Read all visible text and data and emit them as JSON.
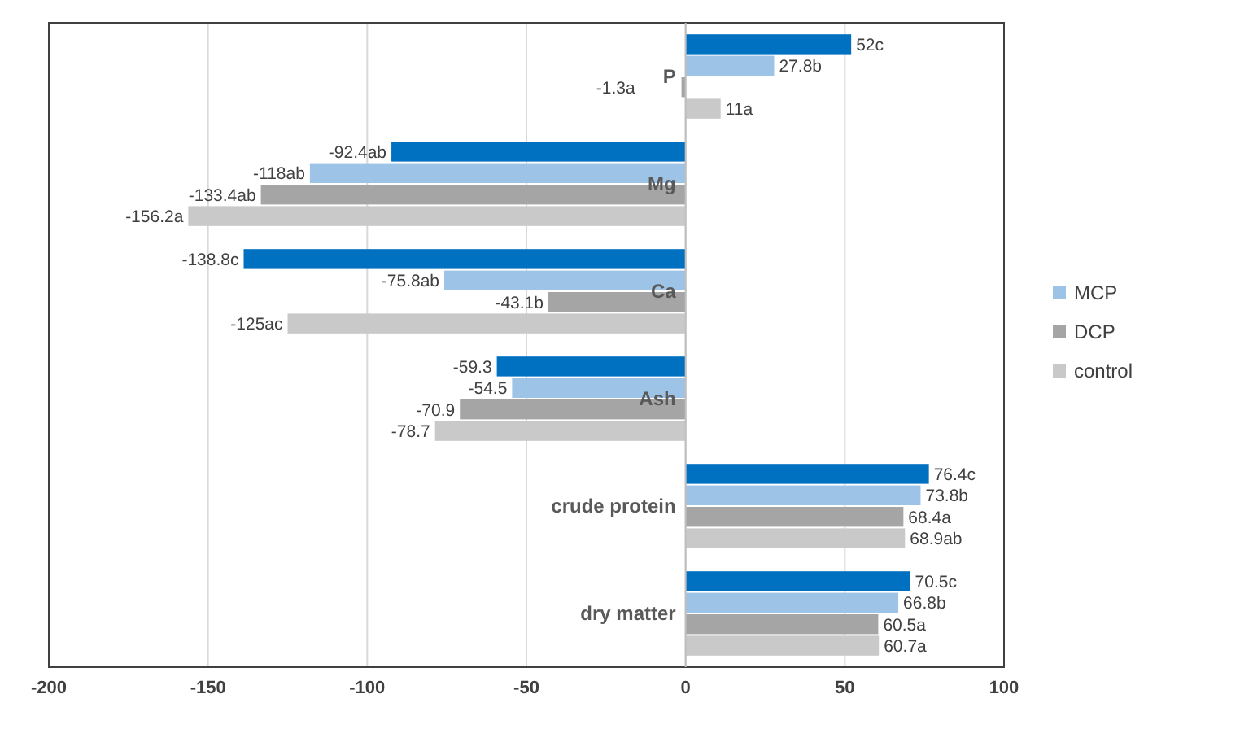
{
  "chart_data": {
    "type": "bar",
    "orientation": "horizontal",
    "categories": [
      "P",
      "Mg",
      "Ca",
      "Ash",
      "crude protein",
      "dry matter"
    ],
    "series": [
      {
        "color": "#0070c0",
        "values": [
          52,
          -92.4,
          -138.8,
          -59.3,
          76.4,
          70.5
        ],
        "value_labels": [
          "52c",
          "-92.4ab",
          "-138.8c",
          "-59.3",
          "76.4c",
          "70.5c"
        ]
      },
      {
        "name": "MCP",
        "color": "#9dc3e6",
        "values": [
          27.8,
          -118,
          -75.8,
          -54.5,
          73.8,
          66.8
        ],
        "value_labels": [
          "27.8b",
          "-118ab",
          "-75.8ab",
          "-54.5",
          "73.8b",
          "66.8b"
        ]
      },
      {
        "name": "DCP",
        "color": "#a5a5a5",
        "values": [
          -1.3,
          -133.4,
          -43.1,
          -70.9,
          68.4,
          60.5
        ],
        "value_labels": [
          "-1.3a",
          "-133.4ab",
          "-43.1b",
          "-70.9",
          "68.4a",
          "60.5a"
        ]
      },
      {
        "name": "control",
        "color": "#c9c9c9",
        "values": [
          11,
          -156.2,
          -125,
          -78.7,
          68.9,
          60.7
        ],
        "value_labels": [
          "11a",
          "-156.2a",
          "-125ac",
          "-78.7",
          "68.9ab",
          "60.7a"
        ]
      }
    ],
    "xlim": [
      -200,
      100
    ],
    "xticks": [
      -200,
      -150,
      -100,
      -50,
      0,
      50,
      100
    ],
    "grid": "x",
    "legend": "right"
  }
}
